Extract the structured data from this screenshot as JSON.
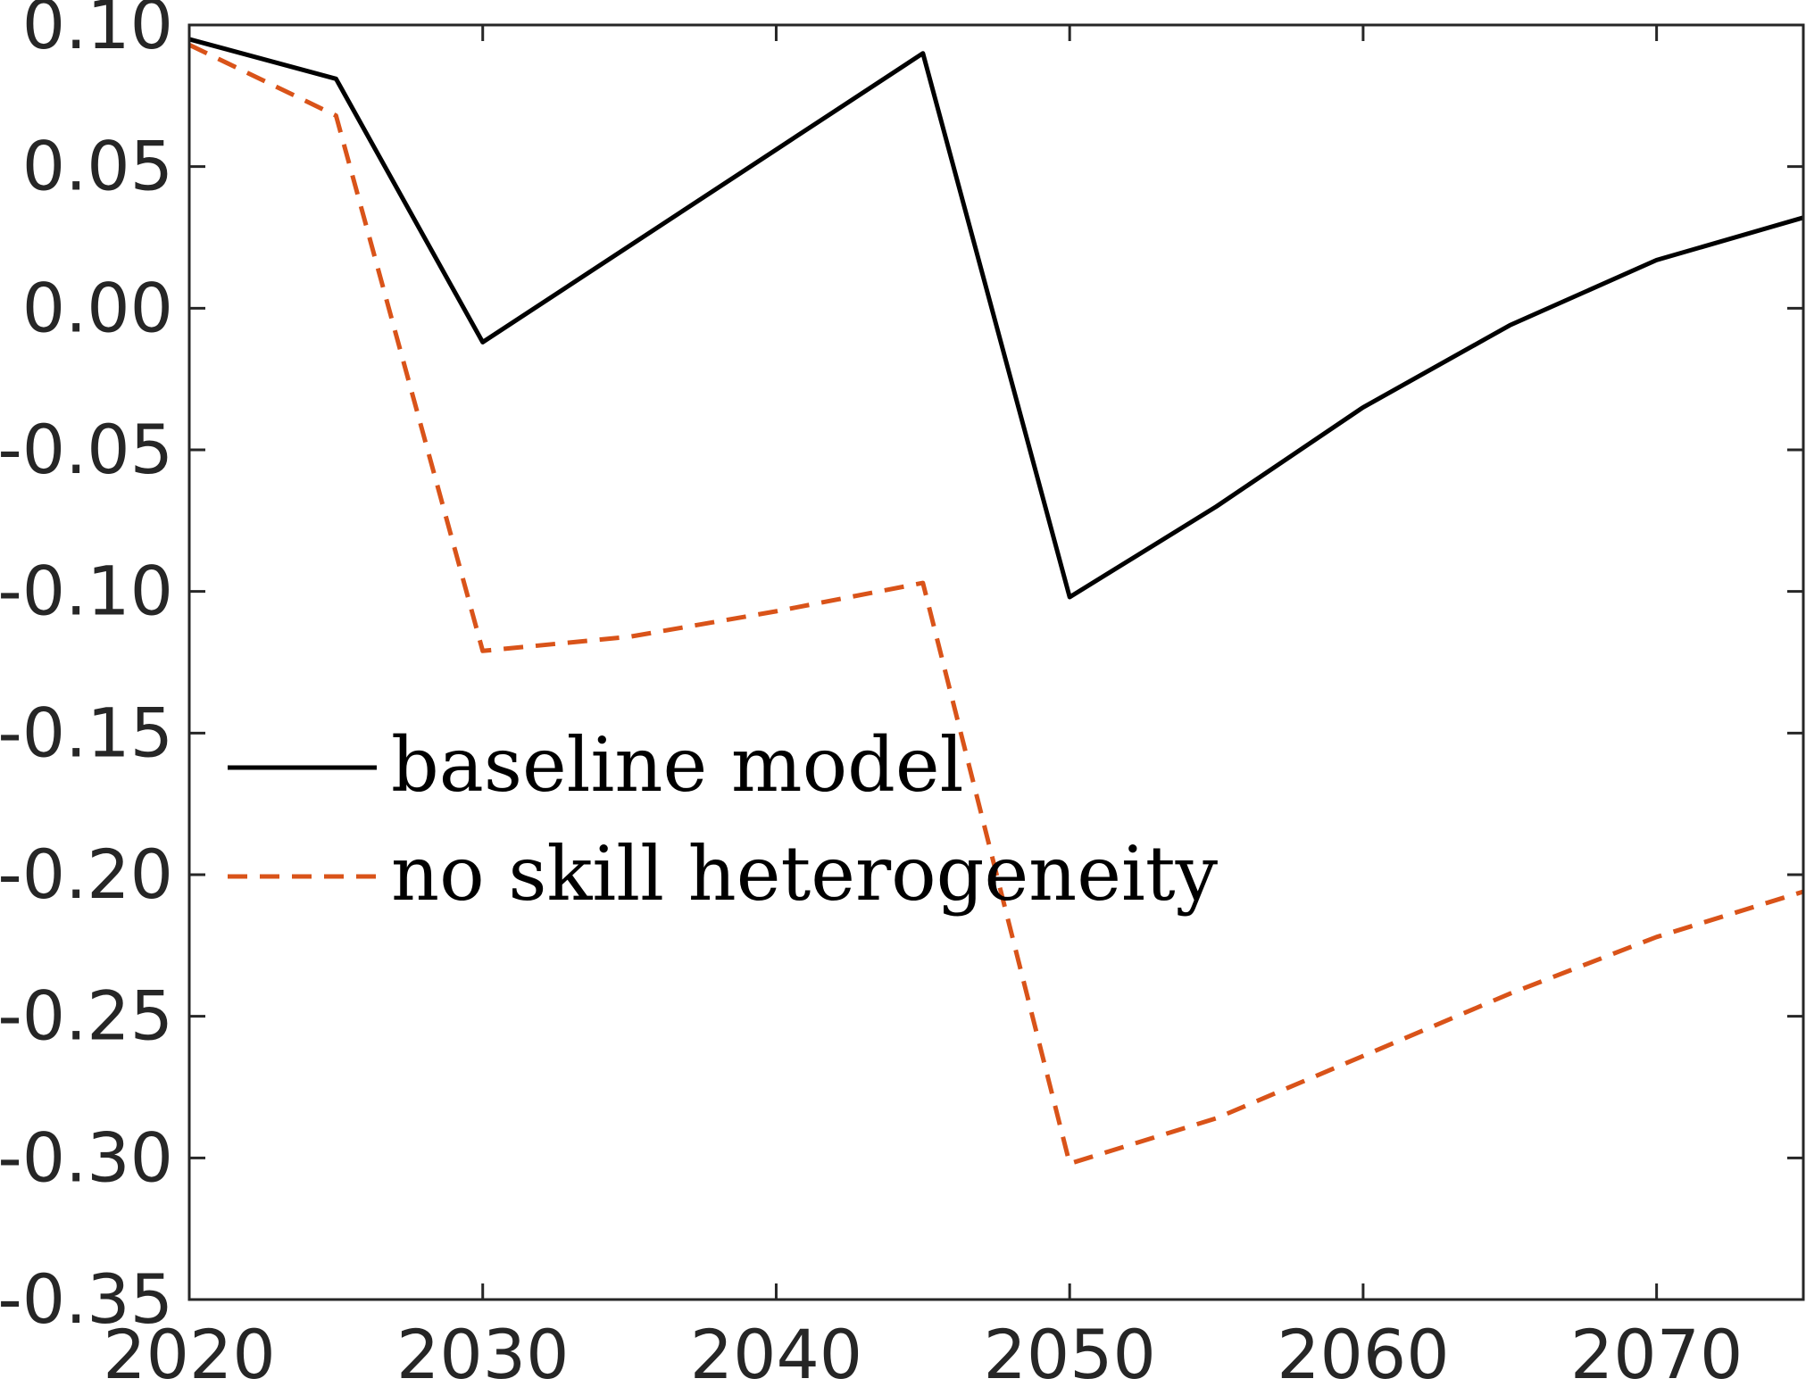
{
  "chart_data": {
    "type": "line",
    "title": "",
    "xlabel": "",
    "ylabel": "",
    "x": [
      2020,
      2025,
      2030,
      2035,
      2040,
      2045,
      2050,
      2055,
      2060,
      2065,
      2070,
      2075
    ],
    "xlim": [
      2020,
      2075
    ],
    "ylim": [
      -0.35,
      0.1
    ],
    "xticks": [
      2020,
      2030,
      2040,
      2050,
      2060,
      2070
    ],
    "xtick_labels": [
      "2020",
      "2030",
      "2040",
      "2050",
      "2060",
      "2070"
    ],
    "yticks": [
      0.1,
      0.05,
      0.0,
      -0.05,
      -0.1,
      -0.15,
      -0.2,
      -0.25,
      -0.3,
      -0.35
    ],
    "ytick_labels": [
      "0.10",
      "0.05",
      "0.00",
      "-0.05",
      "-0.10",
      "-0.15",
      "-0.20",
      "-0.25",
      "-0.30",
      "-0.35"
    ],
    "grid": false,
    "legend_position": "middle-left",
    "series": [
      {
        "name": "baseline model",
        "color": "#000000",
        "style": "solid",
        "values": [
          0.095,
          0.081,
          -0.012,
          0.022,
          0.056,
          0.09,
          -0.102,
          -0.07,
          -0.035,
          -0.006,
          0.017,
          0.032
        ]
      },
      {
        "name": "no skill heterogeneity",
        "color": "#D95319",
        "style": "dashed",
        "values": [
          0.093,
          0.068,
          -0.121,
          -0.116,
          -0.107,
          -0.097,
          -0.302,
          -0.286,
          -0.264,
          -0.242,
          -0.222,
          -0.206
        ]
      }
    ]
  }
}
